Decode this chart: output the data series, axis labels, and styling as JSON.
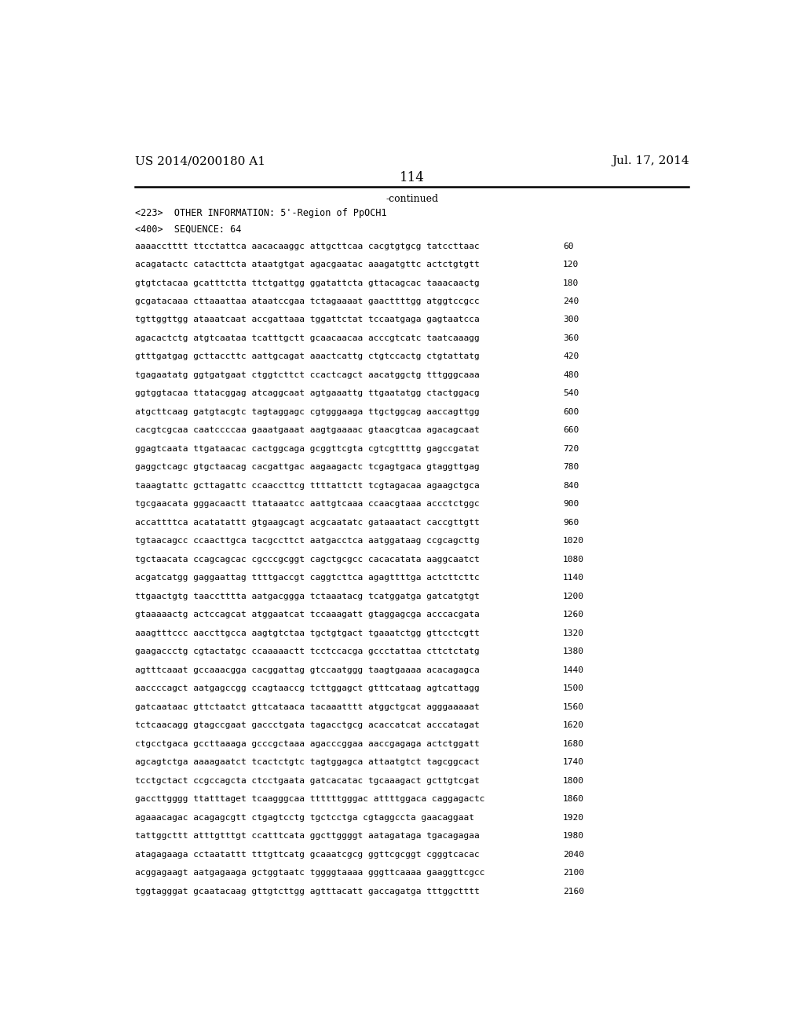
{
  "header_left": "US 2014/0200180 A1",
  "header_right": "Jul. 17, 2014",
  "page_number": "114",
  "continued_text": "-continued",
  "info_line1": "<223>  OTHER INFORMATION: 5'-Region of PpOCH1",
  "info_line2": "<400>  SEQUENCE: 64",
  "sequence_lines": [
    [
      "aaaacctttt ttcctattca aacacaaggc attgcttcaa cacgtgtgcg tatccttaac",
      "60"
    ],
    [
      "acagatactc catacttcta ataatgtgat agacgaatac aaagatgttc actctgtgtt",
      "120"
    ],
    [
      "gtgtctacaa gcatttctta ttctgattgg ggatattcta gttacagcac taaacaactg",
      "180"
    ],
    [
      "gcgatacaaa cttaaattaa ataatccgaa tctagaaaat gaacttttgg atggtccgcc",
      "240"
    ],
    [
      "tgttggttgg ataaatcaat accgattaaa tggattctat tccaatgaga gagtaatcca",
      "300"
    ],
    [
      "agacactctg atgtcaataa tcatttgctt gcaacaacaa acccgtcatc taatcaaagg",
      "360"
    ],
    [
      "gtttgatgag gcttaccttc aattgcagat aaactcattg ctgtccactg ctgtattatg",
      "420"
    ],
    [
      "tgagaatatg ggtgatgaat ctggtcttct ccactcagct aacatggctg tttgggcaaa",
      "480"
    ],
    [
      "ggtggtacaa ttatacggag atcaggcaat agtgaaattg ttgaatatgg ctactggacg",
      "540"
    ],
    [
      "atgcttcaag gatgtacgtc tagtaggagc cgtgggaaga ttgctggcag aaccagttgg",
      "600"
    ],
    [
      "cacgtcgcaa caatccccaa gaaatgaaat aagtgaaaac gtaacgtcaa agacagcaat",
      "660"
    ],
    [
      "ggagtcaata ttgataacac cactggcaga gcggttcgta cgtcgttttg gagccgatat",
      "720"
    ],
    [
      "gaggctcagc gtgctaacag cacgattgac aagaagactc tcgagtgaca gtaggttgag",
      "780"
    ],
    [
      "taaagtattc gcttagattc ccaaccttcg ttttattctt tcgtagacaa agaagctgca",
      "840"
    ],
    [
      "tgcgaacata gggacaactt ttataaatcc aattgtcaaa ccaacgtaaa accctctggc",
      "900"
    ],
    [
      "accattttca acatatattt gtgaagcagt acgcaatatc gataaatact caccgttgtt",
      "960"
    ],
    [
      "tgtaacagcc ccaacttgca tacgccttct aatgacctca aatggataag ccgcagcttg",
      "1020"
    ],
    [
      "tgctaacata ccagcagcac cgcccgcggt cagctgcgcc cacacatata aaggcaatct",
      "1080"
    ],
    [
      "acgatcatgg gaggaattag ttttgaccgt caggtcttca agagttttga actcttcttc",
      "1140"
    ],
    [
      "ttgaactgtg taacctttta aatgacggga tctaaatacg tcatggatga gatcatgtgt",
      "1200"
    ],
    [
      "gtaaaaactg actccagcat atggaatcat tccaaagatt gtaggagcga acccacgata",
      "1260"
    ],
    [
      "aaagtttccc aaccttgcca aagtgtctaa tgctgtgact tgaaatctgg gttcctcgtt",
      "1320"
    ],
    [
      "gaagaccctg cgtactatgc ccaaaaactt tcctccacga gccctattaa cttctctatg",
      "1380"
    ],
    [
      "agtttcaaat gccaaacgga cacggattag gtccaatggg taagtgaaaa acacagagca",
      "1440"
    ],
    [
      "aaccccagct aatgagccgg ccagtaaccg tcttggagct gtttcataag agtcattagg",
      "1500"
    ],
    [
      "gatcaataac gttctaatct gttcataaca tacaaatttt atggctgcat agggaaaaat",
      "1560"
    ],
    [
      "tctcaacagg gtagccgaat gaccctgata tagacctgcg acaccatcat acccatagat",
      "1620"
    ],
    [
      "ctgcctgaca gccttaaaga gcccgctaaa agacccggaa aaccgagaga actctggatt",
      "1680"
    ],
    [
      "agcagtctga aaaagaatct tcactctgtc tagtggagca attaatgtct tagcggcact",
      "1740"
    ],
    [
      "tcctgctact ccgccagcta ctcctgaata gatcacatac tgcaaagact gcttgtcgat",
      "1800"
    ],
    [
      "gaccttgggg ttatttaget tcaagggcaa ttttttgggac attttggaca caggagactc",
      "1860"
    ],
    [
      "agaaacagac acagagcgtt ctgagtcctg tgctcctga cgtaggccta gaacaggaat",
      "1920"
    ],
    [
      "tattggcttt atttgtttgt ccatttcata ggcttggggt aatagataga tgacagagaa",
      "1980"
    ],
    [
      "atagagaaga cctaatattt tttgttcatg gcaaatcgcg ggttcgcggt cgggtcacac",
      "2040"
    ],
    [
      "acggagaagt aatgagaaga gctggtaatc tggggtaaaa gggttcaaaa gaaggttcgcc",
      "2100"
    ],
    [
      "tggtagggat gcaatacaag gttgtcttgg agtttacatt gaccagatga tttggctttt",
      "2160"
    ]
  ],
  "background_color": "#ffffff",
  "text_color": "#000000",
  "font_size_header": 11,
  "font_size_page": 12,
  "font_size_continued": 9,
  "font_size_info": 8.5,
  "font_size_seq": 8,
  "line_color": "#000000"
}
